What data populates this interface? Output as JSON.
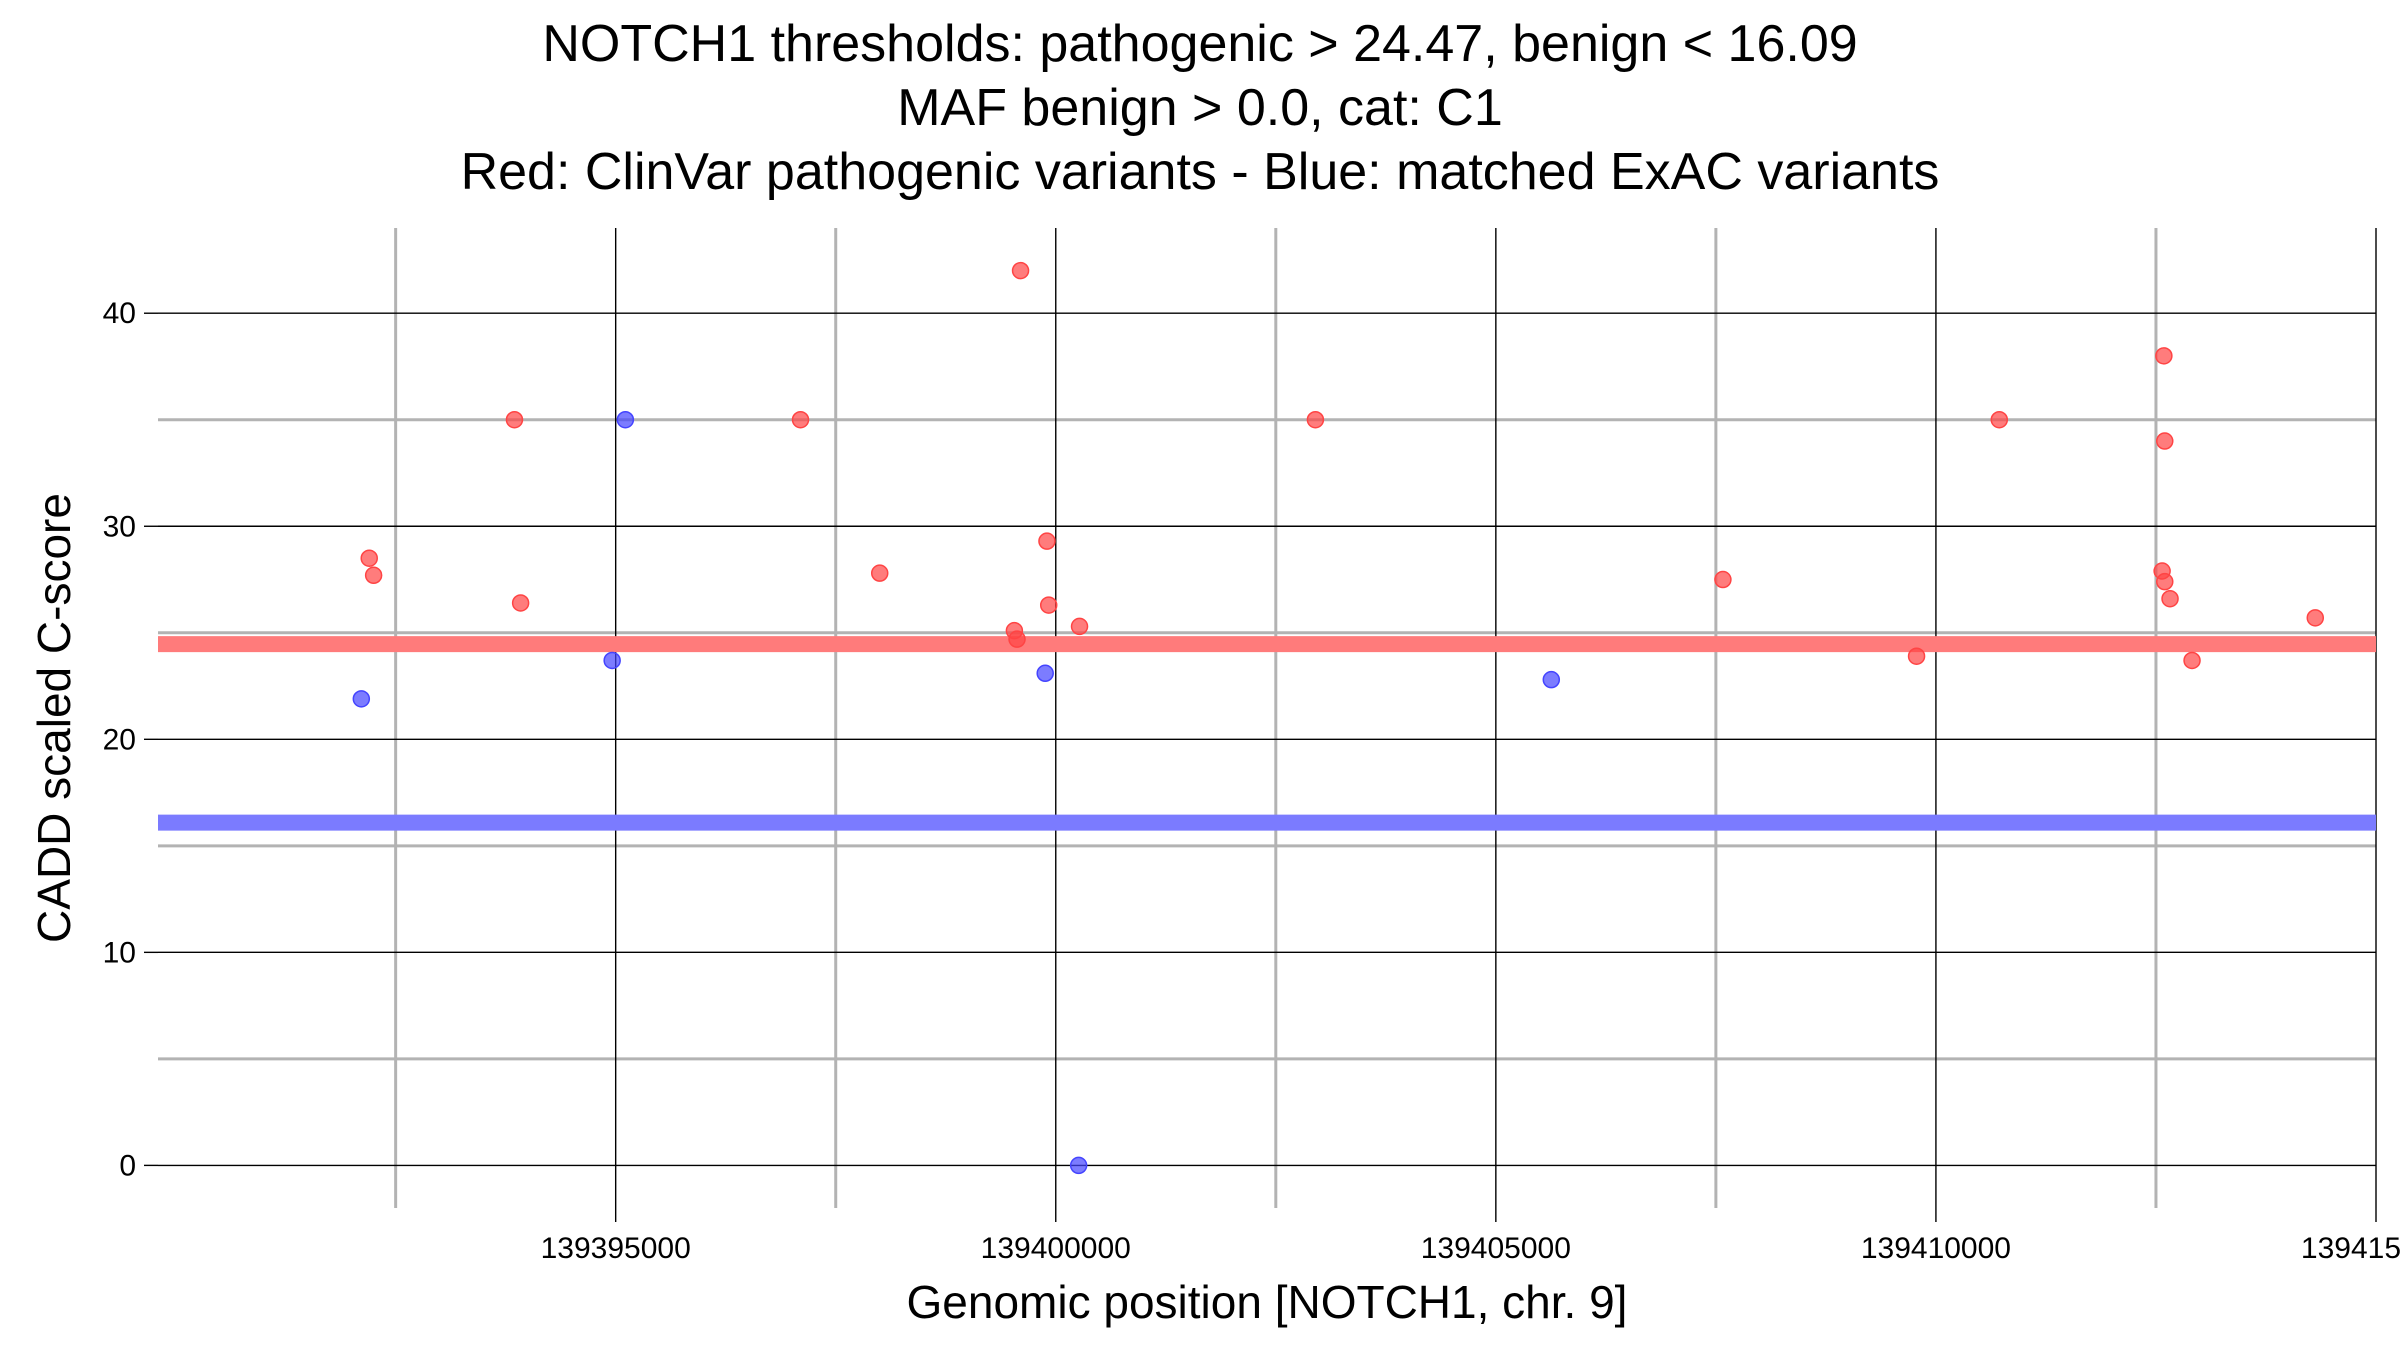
{
  "chart_data": {
    "type": "scatter",
    "title_lines": [
      "NOTCH1 thresholds: pathogenic > 24.47, benign < 16.09",
      "MAF benign > 0.0, cat: C1",
      "Red: ClinVar pathogenic variants - Blue: matched ExAC variants"
    ],
    "xlabel": "Genomic position [NOTCH1, chr. 9]",
    "ylabel": "CADD scaled C-score",
    "xlim": [
      139389800,
      139415000
    ],
    "ylim": [
      -2,
      44
    ],
    "x_ticks": [
      139395000,
      139400000,
      139405000,
      139410000,
      139415000
    ],
    "x_tick_labels": [
      "139395000",
      "139400000",
      "139405000",
      "139410000",
      "139415000"
    ],
    "x_minor_ticks": [
      139392500,
      139397500,
      139402500,
      139407500,
      139412500
    ],
    "y_ticks": [
      0,
      10,
      20,
      30,
      40
    ],
    "y_tick_labels": [
      "0",
      "10",
      "20",
      "30",
      "40"
    ],
    "y_minor_ticks": [
      5,
      15,
      25,
      35
    ],
    "thresholds": [
      {
        "name": "pathogenic",
        "value": 24.47,
        "color": "#ff7b7b"
      },
      {
        "name": "benign",
        "value": 16.09,
        "color": "#7b7bff"
      }
    ],
    "series": [
      {
        "name": "ClinVar pathogenic variants",
        "color": "#ff4444",
        "points": [
          {
            "x": 139392200,
            "y": 28.5
          },
          {
            "x": 139392250,
            "y": 27.7
          },
          {
            "x": 139393850,
            "y": 35
          },
          {
            "x": 139393920,
            "y": 26.4
          },
          {
            "x": 139397100,
            "y": 35
          },
          {
            "x": 139398000,
            "y": 27.8
          },
          {
            "x": 139399600,
            "y": 42
          },
          {
            "x": 139399530,
            "y": 25.1
          },
          {
            "x": 139399560,
            "y": 24.7
          },
          {
            "x": 139399900,
            "y": 29.3
          },
          {
            "x": 139399920,
            "y": 26.3
          },
          {
            "x": 139400270,
            "y": 25.3
          },
          {
            "x": 139402950,
            "y": 35
          },
          {
            "x": 139407580,
            "y": 27.5
          },
          {
            "x": 139409780,
            "y": 23.9
          },
          {
            "x": 139410720,
            "y": 35
          },
          {
            "x": 139412590,
            "y": 38
          },
          {
            "x": 139412600,
            "y": 34
          },
          {
            "x": 139412570,
            "y": 27.9
          },
          {
            "x": 139412600,
            "y": 27.4
          },
          {
            "x": 139412660,
            "y": 26.6
          },
          {
            "x": 139412910,
            "y": 23.7
          },
          {
            "x": 139414310,
            "y": 25.7
          }
        ]
      },
      {
        "name": "matched ExAC variants",
        "color": "#4444ff",
        "points": [
          {
            "x": 139392110,
            "y": 21.9
          },
          {
            "x": 139395110,
            "y": 35
          },
          {
            "x": 139394960,
            "y": 23.7
          },
          {
            "x": 139399880,
            "y": 23.1
          },
          {
            "x": 139400260,
            "y": 0
          },
          {
            "x": 139405630,
            "y": 22.8
          }
        ]
      }
    ]
  }
}
